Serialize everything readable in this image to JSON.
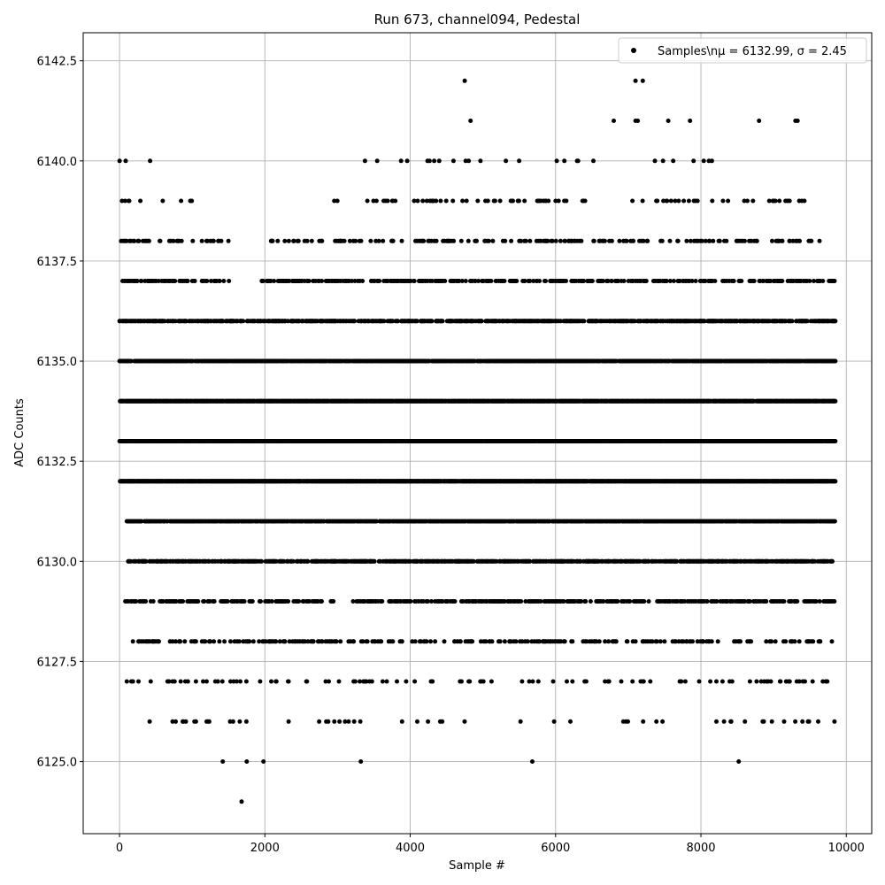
{
  "chart_data": {
    "type": "scatter",
    "title": "Run 673, channel094, Pedestal",
    "xlabel": "Sample #",
    "ylabel": "ADC Counts",
    "xlim": [
      -500,
      10350
    ],
    "ylim": [
      6123.2,
      6143.2
    ],
    "xticks": [
      0,
      2000,
      4000,
      6000,
      8000,
      10000
    ],
    "yticks": [
      6125.0,
      6127.5,
      6130.0,
      6132.5,
      6135.0,
      6137.5,
      6140.0,
      6142.5
    ],
    "xtick_labels": [
      "0",
      "2000",
      "4000",
      "6000",
      "8000",
      "10000"
    ],
    "ytick_labels": [
      "6125.0",
      "6127.5",
      "6130.0",
      "6132.5",
      "6135.0",
      "6137.5",
      "6140.0",
      "6142.5"
    ],
    "grid": true,
    "legend_position": "upper right",
    "series": [
      {
        "name": "Samples\\n$\\mu$ = 6132.99, $\\sigma$ = 2.45",
        "legend_text": "Samples\\nμ = 6132.99, σ = 2.45",
        "color": "#000000",
        "marker": "circle",
        "x_range": [
          0,
          9850
        ],
        "bands": [
          {
            "y": 6132,
            "segments": [
              [
                0,
                9850
              ]
            ]
          },
          {
            "y": 6133,
            "segments": [
              [
                0,
                9850
              ]
            ]
          },
          {
            "y": 6134,
            "segments": [
              [
                0,
                9850
              ]
            ]
          },
          {
            "y": 6135,
            "segments": [
              [
                0,
                9850
              ]
            ]
          },
          {
            "y": 6131,
            "segments": [
              [
                100,
                9850
              ]
            ]
          },
          {
            "y": 6136,
            "segments": [
              [
                0,
                9850
              ]
            ]
          },
          {
            "y": 6130,
            "segments": [
              [
                120,
                9850
              ]
            ]
          },
          {
            "y": 6137,
            "segments": [
              [
                0,
                1550
              ],
              [
                1950,
                9850
              ]
            ]
          },
          {
            "y": 6129,
            "segments": [
              [
                80,
                2950
              ],
              [
                3200,
                9850
              ]
            ]
          },
          {
            "y": 6138,
            "segments": [
              [
                0,
                1500
              ],
              [
                2050,
                9700
              ]
            ]
          },
          {
            "y": 6128,
            "segments": [
              [
                100,
                9850
              ]
            ]
          },
          {
            "y": 6127,
            "segments": [
              [
                100,
                9850
              ]
            ]
          },
          {
            "y": 6139,
            "segments": [
              [
                0,
                1000
              ],
              [
                2850,
                9650
              ]
            ]
          },
          {
            "y": 6126,
            "segments": [
              [
                380,
                9850
              ]
            ]
          },
          {
            "y": 6140,
            "segments": [
              [
                0,
                950
              ],
              [
                3300,
                8200
              ]
            ]
          }
        ],
        "points": [
          [
            4750,
            6142
          ],
          [
            7100,
            6142
          ],
          [
            7200,
            6142
          ],
          [
            4830,
            6141
          ],
          [
            6800,
            6141
          ],
          [
            7100,
            6141
          ],
          [
            7130,
            6141
          ],
          [
            7550,
            6141
          ],
          [
            7850,
            6141
          ],
          [
            8800,
            6141
          ],
          [
            9300,
            6141
          ],
          [
            9330,
            6141
          ],
          [
            1420,
            6125
          ],
          [
            1750,
            6125
          ],
          [
            1980,
            6125
          ],
          [
            3320,
            6125
          ],
          [
            5680,
            6125
          ],
          [
            8520,
            6125
          ],
          [
            1680,
            6124
          ]
        ]
      }
    ]
  }
}
